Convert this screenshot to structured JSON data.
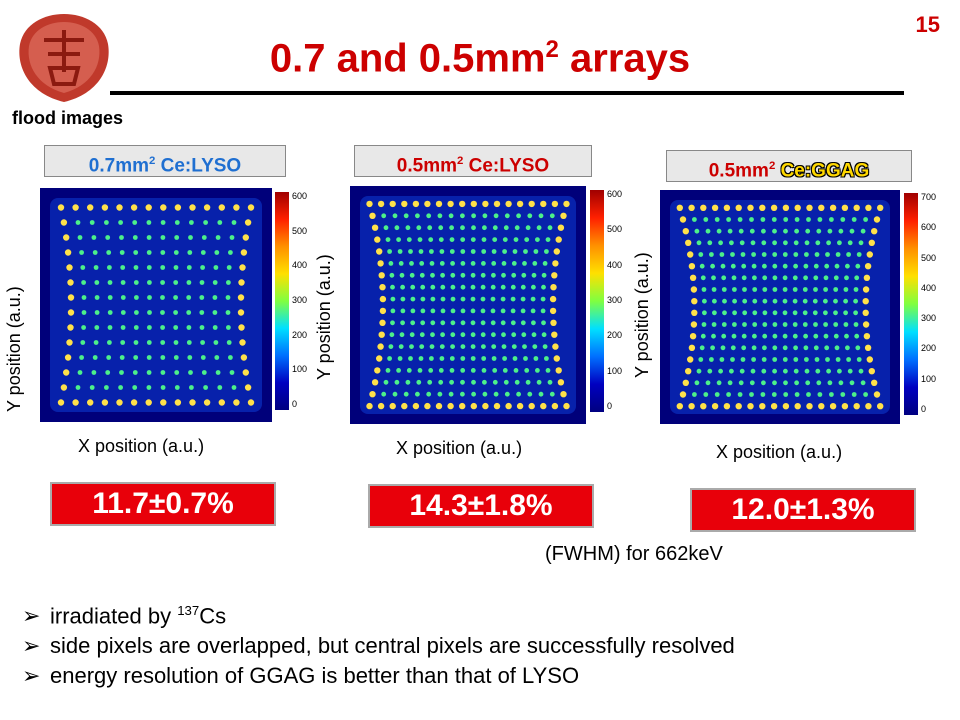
{
  "page_number": "15",
  "title_prefix": "0.7 and 0.5mm",
  "title_sup": "2",
  "title_suffix": " arrays",
  "subtitle": "flood images",
  "panels": [
    {
      "size": "0.7mm",
      "sup": "2",
      "material": " Ce:LYSO",
      "result": "11.7±0.7%",
      "xlabel": "X position (a.u.)",
      "ylabel": "Y position (a.u.)",
      "cb_ticks": [
        "600",
        "500",
        "400",
        "300",
        "200",
        "100",
        "0"
      ]
    },
    {
      "size": "0.5mm",
      "sup": "2",
      "material": " Ce:LYSO",
      "result": "14.3±1.8%",
      "xlabel": "X position (a.u.)",
      "ylabel": "Y position (a.u.)",
      "cb_ticks": [
        "600",
        "500",
        "400",
        "300",
        "200",
        "100",
        "0"
      ]
    },
    {
      "size": "0.5mm",
      "sup": "2",
      "material": "Ce:GGAG",
      "result": "12.0±1.3%",
      "xlabel": "X position (a.u.)",
      "ylabel": "Y position (a.u.)",
      "cb_ticks": [
        "700",
        "600",
        "500",
        "400",
        "300",
        "200",
        "100",
        "0"
      ]
    }
  ],
  "fwhm_note": "(FWHM) for 662keV",
  "bullets": [
    {
      "text_pre": "irradiated by ",
      "sup": "137",
      "text_post": "Cs"
    },
    {
      "text_pre": "side pixels are overlapped, but central pixels are successfully resolved",
      "sup": "",
      "text_post": ""
    },
    {
      "text_pre": "energy resolution of GGAG is better than that of LYSO",
      "sup": "",
      "text_post": ""
    }
  ],
  "colors": {
    "accent": "#cc0000",
    "label_blue": "#1f6fd1",
    "result_bg": "#e8000a",
    "ggag_yellow": "#ffd800"
  }
}
